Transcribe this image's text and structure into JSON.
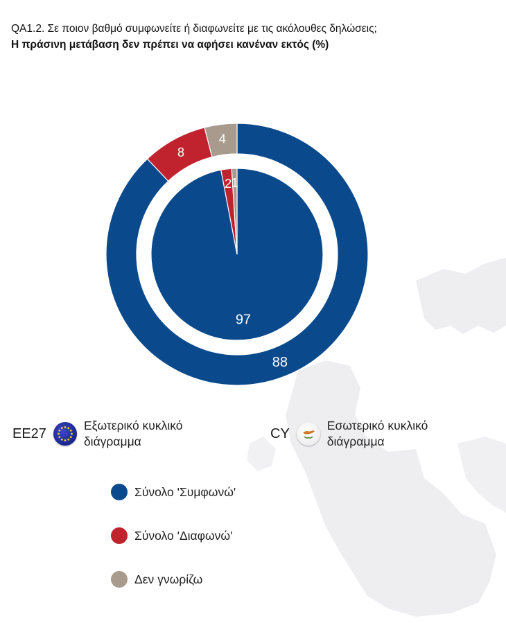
{
  "title": {
    "line1": "QA1.2. Σε ποιον βαθμό συμφωνείτε ή διαφωνείτε με τις ακόλουθες δηλώσεις;",
    "line2": "Η πράσινη μετάβαση δεν πρέπει να αφήσει κανέναν εκτός (%)"
  },
  "regions": {
    "outer": {
      "code": "EE27",
      "text": "Εξωτερικό κυκλικό διάγραμμα",
      "icon": "eu-flag-icon"
    },
    "inner": {
      "code": "CY",
      "text": "Εσωτερικό κυκλικό διάγραμμα",
      "icon": "cyprus-flag-icon"
    }
  },
  "colors": {
    "agree": "#0a4a8c",
    "disagree": "#c0232e",
    "dont_know": "#a89a8c",
    "map": "#eeeef0"
  },
  "legend": [
    {
      "label": "Σύνολο 'Συμφωνώ'",
      "color": "#0a4a8c"
    },
    {
      "label": "Σύνολο 'Διαφωνώ'",
      "color": "#c0232e"
    },
    {
      "label": "Δεν γνωρίζω",
      "color": "#a89a8c"
    }
  ],
  "chart_data": {
    "type": "pie",
    "categories": [
      "Σύνολο 'Συμφωνώ'",
      "Σύνολο 'Διαφωνώ'",
      "Δεν γνωρίζω"
    ],
    "series": [
      {
        "name": "EE27",
        "ring": "outer",
        "values": [
          88,
          8,
          4
        ]
      },
      {
        "name": "CY",
        "ring": "inner",
        "values": [
          97,
          2,
          1
        ]
      }
    ],
    "start": "12 o'clock, clockwise"
  }
}
